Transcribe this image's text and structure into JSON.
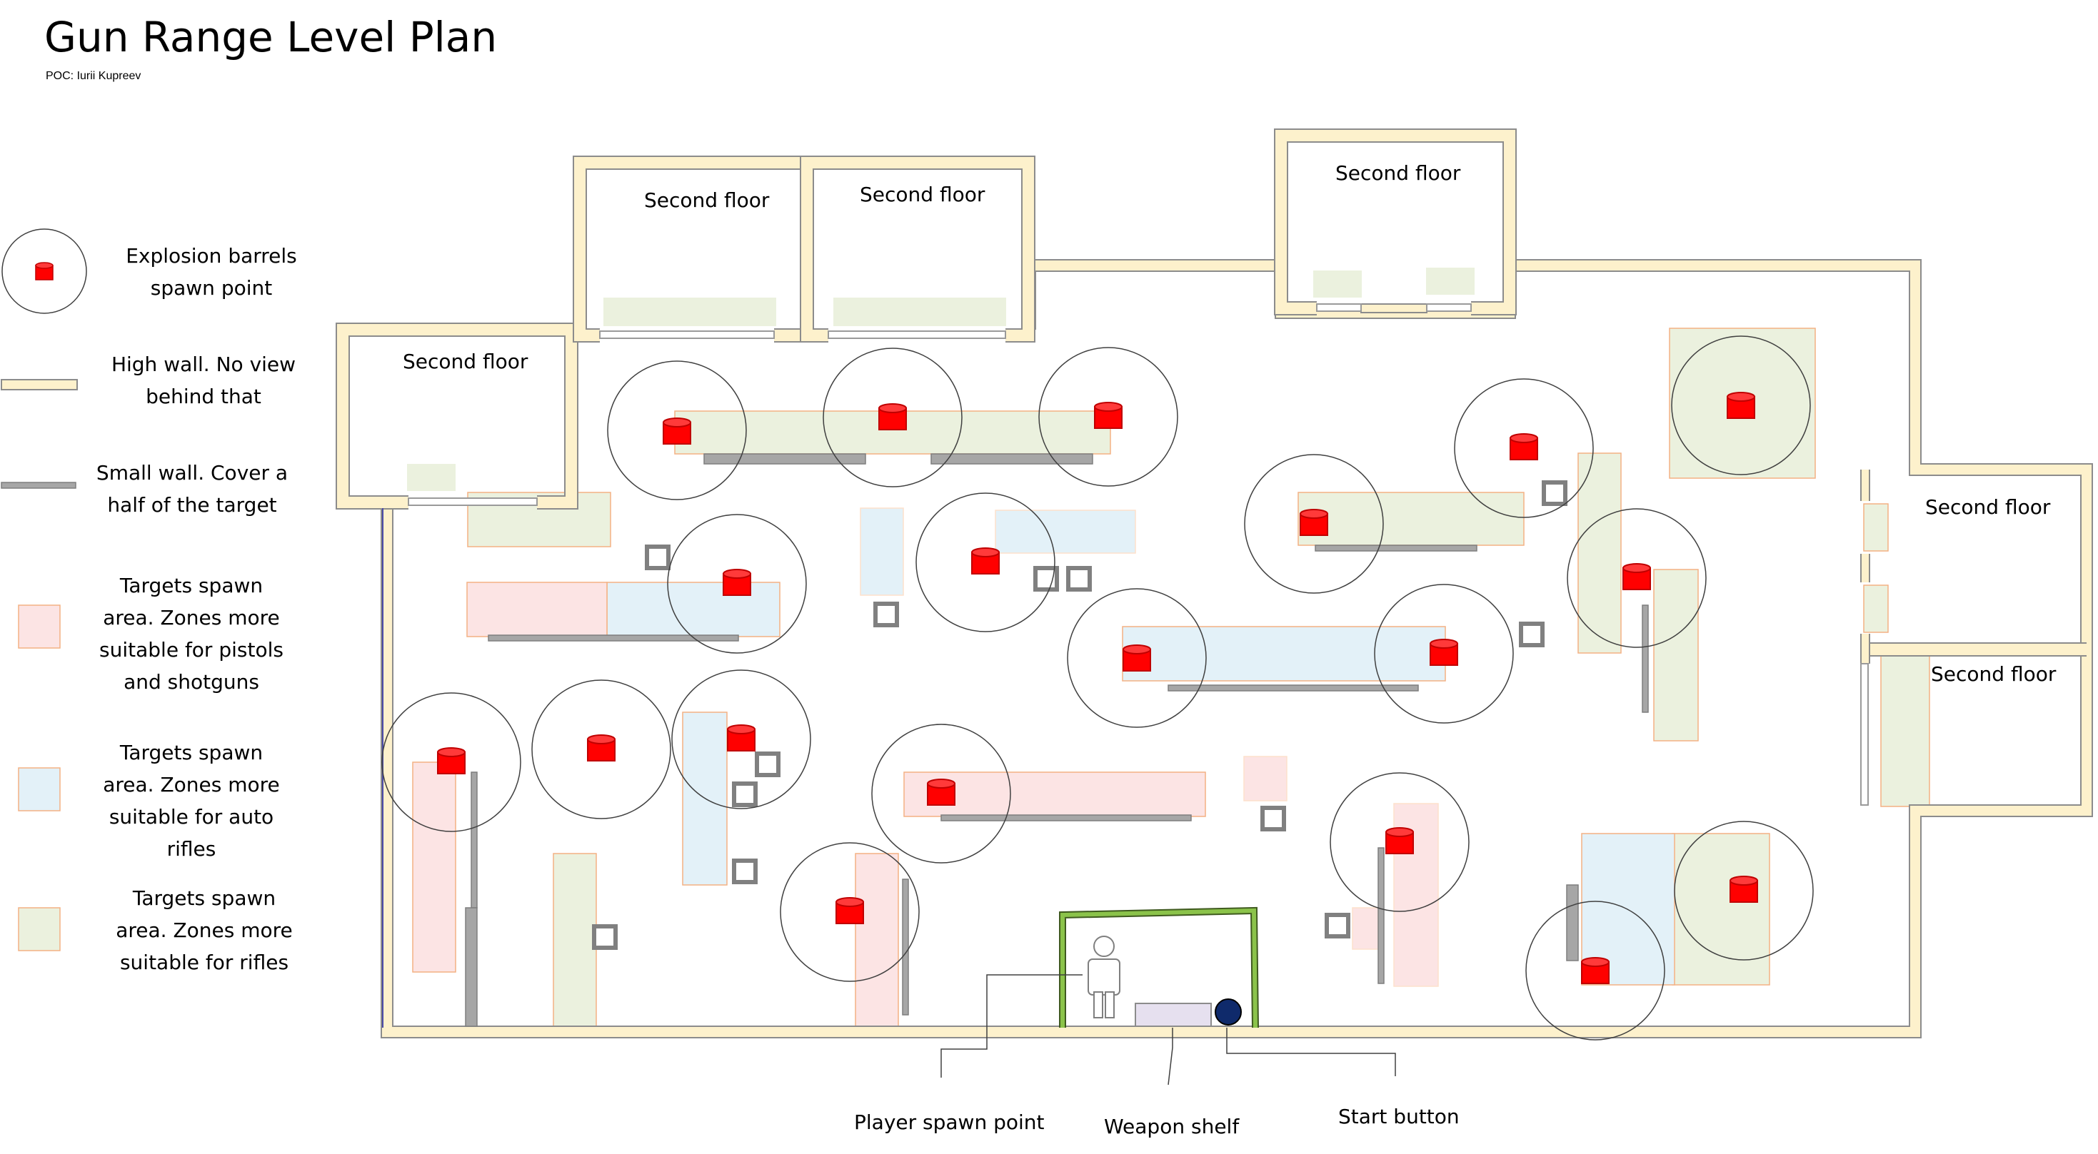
{
  "title": "Gun Range Level Plan",
  "subtitle": "POC: Iurii Kupreev",
  "legend": [
    {
      "icon": "barrel-icon",
      "text": "Explosion barrels spawn point"
    },
    {
      "icon": "high-wall-icon",
      "text": "High wall. No view behind that"
    },
    {
      "icon": "small-wall-icon",
      "text": "Small wall. Cover a half of the target"
    },
    {
      "icon": "pistol-zone-icon",
      "text": "Targets spawn area. Zones more suitable for pistols and shotguns"
    },
    {
      "icon": "auto-rifle-zone-icon",
      "text": "Targets spawn area. Zones more suitable for auto rifles"
    },
    {
      "icon": "rifle-zone-icon",
      "text": "Targets spawn area. Zones more suitable for rifles"
    }
  ],
  "rooms": [
    "Second floor",
    "Second floor",
    "Second floor",
    "Second floor",
    "Second floor",
    "Second floor"
  ],
  "callouts": {
    "player_spawn": "Player spawn point",
    "weapon_shelf": "Weapon shelf",
    "start_button": "Start button"
  },
  "colors": {
    "high_wall_fill": "#fdf1cc",
    "high_wall_stroke": "#8c8c8c",
    "small_wall": "#a6a6a6",
    "barrel": "#ff0000",
    "pistol_zone": "#fce4e4",
    "auto_rifle_zone": "#e3f1f8",
    "rifle_zone": "#ebf1de",
    "zone_border": "#f4b183",
    "spawn_booth": "#70ad47",
    "start_button": "#0f2a6b"
  }
}
